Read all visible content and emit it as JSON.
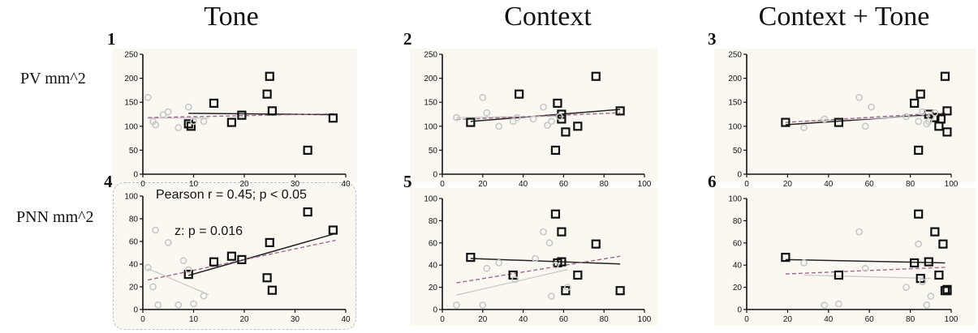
{
  "column_titles": [
    "Tone",
    "Context",
    "Context + Tone"
  ],
  "row_labels": [
    "PV mm^2",
    "PNN mm^2"
  ],
  "colors": {
    "square": "#111111",
    "circle": "#c8c8c8",
    "fit_squares": "#222222",
    "fit_circles": "#c9c9c9",
    "fit_all_dashed": "#9a6b8c",
    "panel_bg": "#fbf8f1"
  },
  "annotations": {
    "pearson": "Pearson r = 0.45; p < 0.05",
    "z": "z: p = 0.016"
  },
  "chart_data": [
    {
      "type": "scatter",
      "panel": "1",
      "xlim": [
        0,
        40
      ],
      "ylim": [
        0,
        250
      ],
      "x_ticks": [
        "0",
        "10",
        "20",
        "30",
        "40"
      ],
      "y_ticks": [
        "0",
        "50",
        "100",
        "150",
        "200",
        "250"
      ],
      "series": [
        {
          "marker": "square",
          "x": [
            9,
            9.5,
            14,
            17.5,
            19.5,
            24.5,
            25,
            25.5,
            32.5,
            37.5
          ],
          "y": [
            105,
            100,
            148,
            108,
            123,
            167,
            204,
            132,
            50,
            117
          ]
        },
        {
          "marker": "circle",
          "x": [
            1,
            2,
            2.5,
            4,
            5,
            7,
            9,
            10,
            12
          ],
          "y": [
            160,
            110,
            103,
            124,
            130,
            97,
            140,
            110,
            110
          ]
        }
      ],
      "fits": [
        {
          "style": "solid-black",
          "from": [
            9,
            127
          ],
          "to": [
            38,
            124
          ]
        },
        {
          "style": "solid-grey",
          "from": [
            1,
            117
          ],
          "to": [
            13,
            117
          ]
        },
        {
          "style": "dashed",
          "from": [
            1,
            118
          ],
          "to": [
            38,
            126
          ]
        }
      ]
    },
    {
      "type": "scatter",
      "panel": "2",
      "xlim": [
        0,
        100
      ],
      "ylim": [
        0,
        250
      ],
      "x_ticks": [
        "0",
        "20",
        "40",
        "60",
        "80",
        "100"
      ],
      "y_ticks": [
        "0",
        "50",
        "100",
        "150",
        "200",
        "250"
      ],
      "series": [
        {
          "marker": "square",
          "x": [
            14,
            38,
            56,
            57,
            59,
            59,
            61,
            67,
            76,
            88
          ],
          "y": [
            108,
            167,
            50,
            148,
            125,
            115,
            88,
            100,
            204,
            132
          ]
        },
        {
          "marker": "circle",
          "x": [
            7,
            20,
            22,
            28,
            35,
            37,
            45,
            50,
            52,
            54,
            58
          ],
          "y": [
            118,
            160,
            128,
            100,
            110,
            118,
            115,
            140,
            102,
            110,
            120
          ]
        }
      ],
      "fits": [
        {
          "style": "solid-black",
          "from": [
            14,
            110
          ],
          "to": [
            88,
            135
          ]
        },
        {
          "style": "solid-grey",
          "from": [
            7,
            118
          ],
          "to": [
            58,
            121
          ]
        },
        {
          "style": "dashed",
          "from": [
            7,
            114
          ],
          "to": [
            88,
            128
          ]
        }
      ]
    },
    {
      "type": "scatter",
      "panel": "3",
      "xlim": [
        0,
        100
      ],
      "ylim": [
        0,
        250
      ],
      "x_ticks": [
        "0",
        "20",
        "40",
        "60",
        "80",
        "100"
      ],
      "y_ticks": [
        "0",
        "50",
        "100",
        "150",
        "200",
        "250"
      ],
      "series": [
        {
          "marker": "square",
          "x": [
            19,
            45,
            82,
            84,
            85,
            89,
            92,
            94,
            95,
            97,
            98,
            98
          ],
          "y": [
            108,
            108,
            148,
            50,
            167,
            125,
            118,
            100,
            115,
            204,
            132,
            88
          ]
        },
        {
          "marker": "circle",
          "x": [
            28,
            38,
            55,
            58,
            61,
            78,
            84,
            86,
            88,
            89,
            90,
            92
          ],
          "y": [
            97,
            115,
            160,
            100,
            140,
            120,
            110,
            130,
            105,
            110,
            120,
            128
          ]
        }
      ],
      "fits": [
        {
          "style": "solid-black",
          "from": [
            19,
            103
          ],
          "to": [
            97,
            126
          ]
        },
        {
          "style": "solid-grey",
          "from": [
            28,
            110
          ],
          "to": [
            92,
            122
          ]
        },
        {
          "style": "dashed",
          "from": [
            19,
            108
          ],
          "to": [
            97,
            128
          ]
        }
      ]
    },
    {
      "type": "scatter",
      "panel": "4",
      "xlim": [
        0,
        40
      ],
      "ylim": [
        0,
        100
      ],
      "x_ticks": [
        "0",
        "10",
        "20",
        "30",
        "40"
      ],
      "y_ticks": [
        "0",
        "20",
        "40",
        "60",
        "80",
        "100"
      ],
      "series": [
        {
          "marker": "square",
          "x": [
            9,
            14,
            17.5,
            19.5,
            24.5,
            25,
            25.5,
            32.5,
            37.5
          ],
          "y": [
            31,
            42,
            47,
            44,
            28,
            59,
            17,
            86,
            70
          ]
        },
        {
          "marker": "circle",
          "x": [
            1,
            2,
            2.5,
            3,
            5,
            7,
            8,
            9,
            10,
            12
          ],
          "y": [
            37,
            20,
            70,
            4,
            59,
            4,
            43,
            35,
            5,
            12
          ]
        }
      ],
      "fits": [
        {
          "style": "solid-black",
          "from": [
            9,
            30
          ],
          "to": [
            38,
            67
          ]
        },
        {
          "style": "solid-grey",
          "from": [
            1,
            36
          ],
          "to": [
            13,
            13
          ]
        },
        {
          "style": "dashed",
          "from": [
            1,
            26
          ],
          "to": [
            38,
            61
          ]
        }
      ]
    },
    {
      "type": "scatter",
      "panel": "5",
      "xlim": [
        0,
        100
      ],
      "ylim": [
        0,
        100
      ],
      "x_ticks": [
        "0",
        "20",
        "40",
        "60",
        "80",
        "100"
      ],
      "y_ticks": [
        "0",
        "20",
        "40",
        "60",
        "80",
        "100"
      ],
      "series": [
        {
          "marker": "square",
          "x": [
            14,
            35,
            56,
            57,
            59,
            59,
            61,
            67,
            76,
            88
          ],
          "y": [
            47,
            31,
            86,
            42,
            70,
            43,
            17,
            31,
            59,
            17
          ]
        },
        {
          "marker": "circle",
          "x": [
            7,
            20,
            22,
            28,
            36,
            46,
            50,
            53,
            54,
            56,
            62
          ],
          "y": [
            4,
            4,
            37,
            42,
            27,
            46,
            70,
            60,
            12,
            40,
            20
          ]
        }
      ],
      "fits": [
        {
          "style": "solid-black",
          "from": [
            14,
            46
          ],
          "to": [
            88,
            41
          ]
        },
        {
          "style": "solid-grey",
          "from": [
            7,
            13
          ],
          "to": [
            62,
            36
          ]
        },
        {
          "style": "dashed",
          "from": [
            7,
            24
          ],
          "to": [
            88,
            48
          ]
        }
      ]
    },
    {
      "type": "scatter",
      "panel": "6",
      "xlim": [
        0,
        100
      ],
      "ylim": [
        0,
        100
      ],
      "x_ticks": [
        "0",
        "20",
        "40",
        "60",
        "80",
        "100"
      ],
      "y_ticks": [
        "0",
        "20",
        "40",
        "60",
        "80",
        "100"
      ],
      "series": [
        {
          "marker": "square",
          "x": [
            19,
            45,
            82,
            84,
            85,
            89,
            92,
            94,
            96,
            97,
            98,
            98
          ],
          "y": [
            47,
            31,
            42,
            86,
            28,
            43,
            70,
            31,
            59,
            17,
            18,
            17
          ]
        },
        {
          "marker": "circle",
          "x": [
            28,
            38,
            45,
            55,
            58,
            78,
            84,
            86,
            88,
            90
          ],
          "y": [
            42,
            4,
            5,
            70,
            37,
            20,
            59,
            25,
            4,
            12
          ]
        }
      ],
      "fits": [
        {
          "style": "solid-black",
          "from": [
            19,
            45
          ],
          "to": [
            97,
            42
          ]
        },
        {
          "style": "solid-grey",
          "from": [
            28,
            31
          ],
          "to": [
            90,
            28
          ]
        },
        {
          "style": "dashed",
          "from": [
            19,
            32
          ],
          "to": [
            97,
            38
          ]
        }
      ]
    }
  ]
}
